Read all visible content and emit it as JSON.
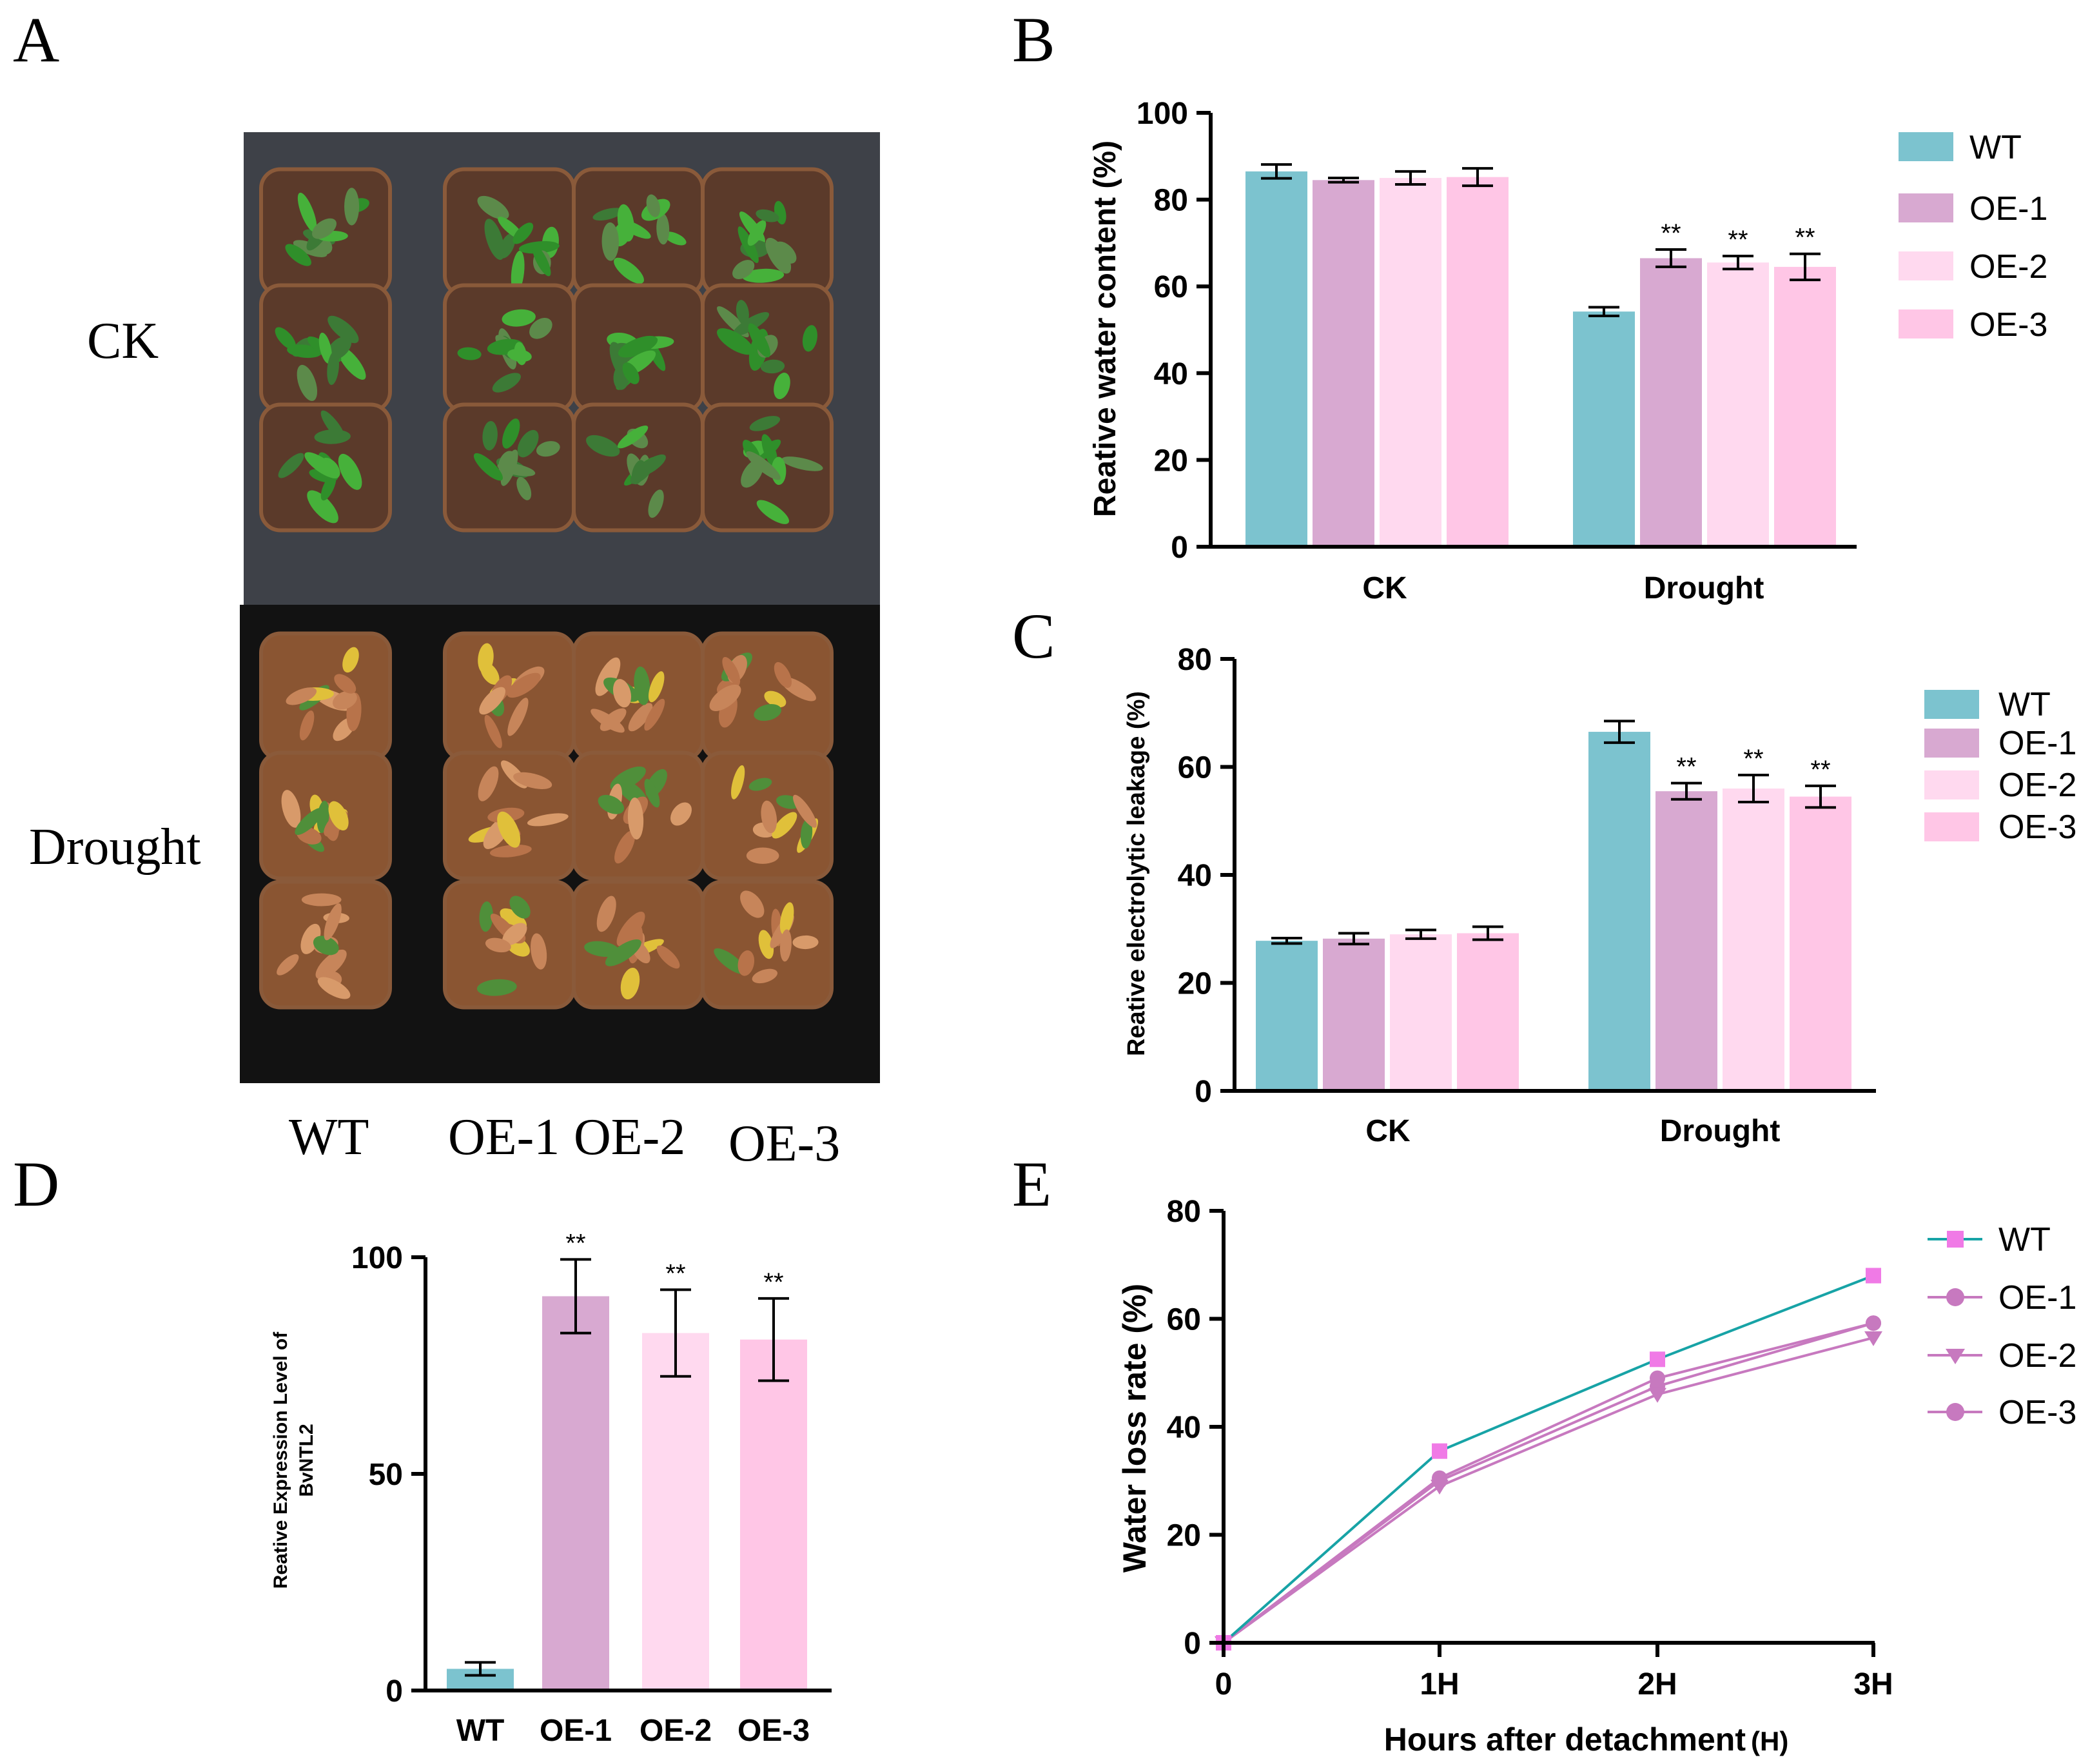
{
  "figure": {
    "panel_labels": [
      "A",
      "B",
      "C",
      "D",
      "E"
    ],
    "colors": {
      "WT": "#7cc3cf",
      "OE-1": "#d8a9d1",
      "OE-2": "#ffd9ef",
      "OE-3": "#ffc6e6",
      "WT_line": "#17a3a6",
      "OE_line": "#c779bf",
      "WT_marker": "#f07ae6"
    }
  },
  "photo": {
    "row_labels": [
      "CK",
      "Drought"
    ],
    "col_labels": [
      "WT",
      "OE-1",
      "OE-2",
      "OE-3"
    ]
  },
  "chart_data": [
    {
      "panel": "B",
      "type": "bar",
      "categories": [
        "CK",
        "Drought"
      ],
      "series": [
        {
          "name": "WT",
          "values": [
            86.5,
            54.2
          ],
          "errors": [
            1.6,
            1.0
          ]
        },
        {
          "name": "OE-1",
          "values": [
            84.5,
            66.5
          ],
          "errors": [
            0.5,
            2.0
          ]
        },
        {
          "name": "OE-2",
          "values": [
            85.0,
            65.5
          ],
          "errors": [
            1.5,
            1.5
          ]
        },
        {
          "name": "OE-3",
          "values": [
            85.2,
            64.5
          ],
          "errors": [
            2.0,
            3.0
          ]
        }
      ],
      "significance": [
        [
          "",
          ""
        ],
        [
          "",
          "**"
        ],
        [
          "",
          "**"
        ],
        [
          "",
          "**"
        ]
      ],
      "ylabel": "Reative water content (%)",
      "ylim": [
        0,
        100
      ],
      "yticks": [
        0,
        20,
        40,
        60,
        80,
        100
      ],
      "legend": [
        "WT",
        "OE-1",
        "OE-2",
        "OE-3"
      ]
    },
    {
      "panel": "C",
      "type": "bar",
      "categories": [
        "CK",
        "Drought"
      ],
      "series": [
        {
          "name": "WT",
          "values": [
            27.8,
            66.5
          ],
          "errors": [
            0.5,
            2.0
          ]
        },
        {
          "name": "OE-1",
          "values": [
            28.2,
            55.5
          ],
          "errors": [
            1.0,
            1.5
          ]
        },
        {
          "name": "OE-2",
          "values": [
            29.0,
            56.0
          ],
          "errors": [
            0.8,
            2.5
          ]
        },
        {
          "name": "OE-3",
          "values": [
            29.2,
            54.5
          ],
          "errors": [
            1.2,
            2.0
          ]
        }
      ],
      "significance": [
        [
          "",
          ""
        ],
        [
          "",
          "**"
        ],
        [
          "",
          "**"
        ],
        [
          "",
          "**"
        ]
      ],
      "ylabel": "Reative electrolytic leakage (%)",
      "ylim": [
        0,
        80
      ],
      "yticks": [
        0,
        20,
        40,
        60,
        80
      ],
      "legend": [
        "WT",
        "OE-1",
        "OE-2",
        "OE-3"
      ]
    },
    {
      "panel": "D",
      "type": "bar",
      "categories": [
        "WT",
        "OE-1",
        "OE-2",
        "OE-3"
      ],
      "values": [
        5,
        91,
        82.5,
        81
      ],
      "errors": [
        1.5,
        8.5,
        10,
        9.5
      ],
      "significance": [
        "",
        "**",
        "**",
        "**"
      ],
      "ylabel_lines": [
        "Reative Expression Level of",
        "BvNTL2"
      ],
      "ylim": [
        0,
        100
      ],
      "yticks": [
        0,
        50,
        100
      ]
    },
    {
      "panel": "E",
      "type": "line",
      "x": [
        "0",
        "1H",
        "2H",
        "3H"
      ],
      "series": [
        {
          "name": "WT",
          "values": [
            0,
            35.5,
            52.5,
            68
          ],
          "marker": "square"
        },
        {
          "name": "OE-1",
          "values": [
            0,
            30.5,
            49,
            59.2
          ],
          "marker": "circle"
        },
        {
          "name": "OE-2",
          "values": [
            0,
            29,
            46,
            56.5
          ],
          "marker": "triangle-down"
        },
        {
          "name": "OE-3",
          "values": [
            0,
            30,
            47.5,
            59.2
          ],
          "marker": "circle"
        }
      ],
      "xlabel": "Hours after detachment",
      "xlabel_unit": "(H)",
      "ylabel": "Water loss rate (%)",
      "ylim": [
        0,
        80
      ],
      "yticks": [
        0,
        20,
        40,
        60,
        80
      ],
      "legend": [
        "WT",
        "OE-1",
        "OE-2",
        "OE-3"
      ]
    }
  ]
}
